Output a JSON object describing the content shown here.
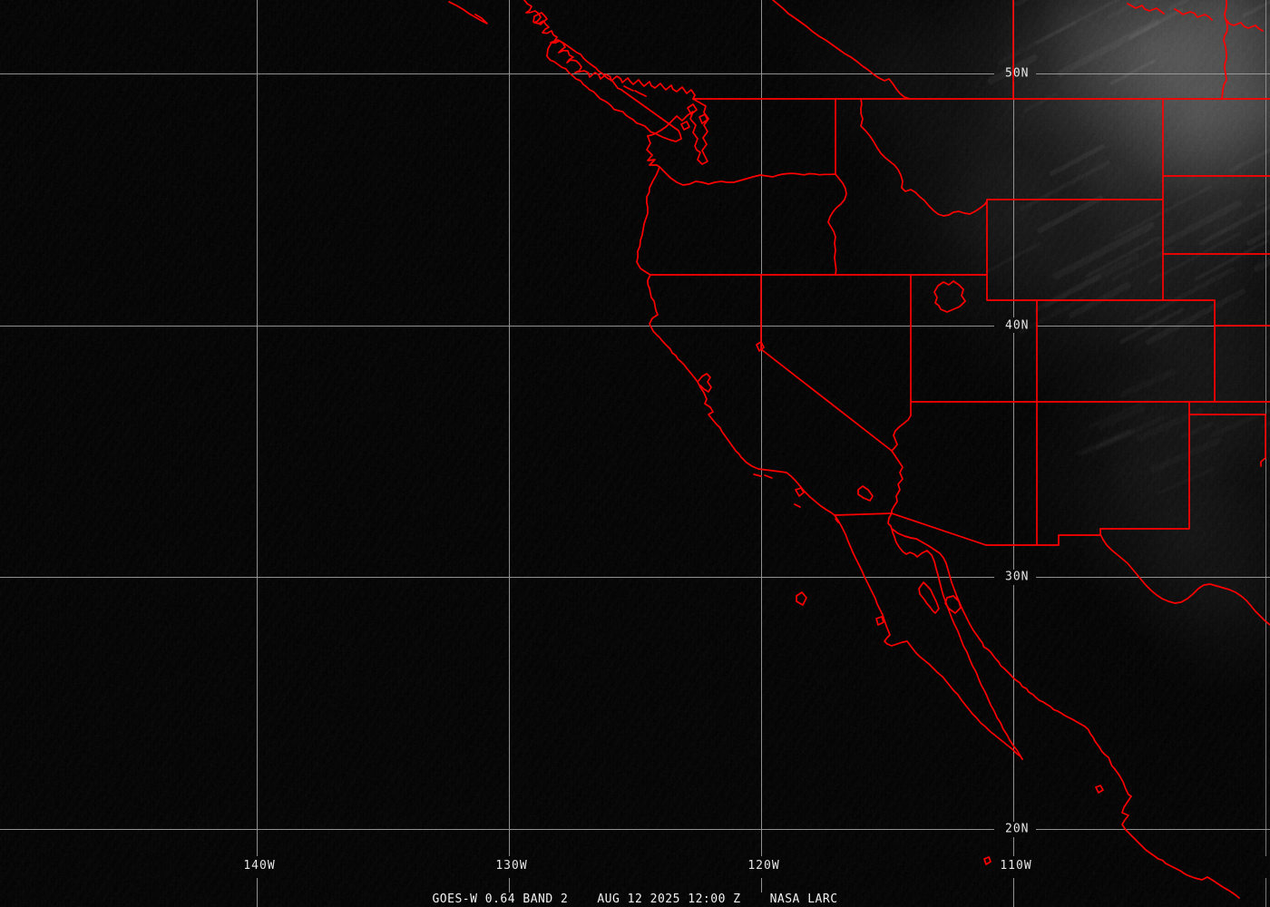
{
  "product": {
    "satellite_band_label": "GOES-W 0.64 BAND 2",
    "datetime_label": "AUG 12 2025 12:00 Z",
    "credit_label": "NASA LARC"
  },
  "grid": {
    "latitude_labels": [
      "50N",
      "40N",
      "30N",
      "20N"
    ],
    "longitude_labels": [
      "140W",
      "130W",
      "120W",
      "110W"
    ]
  },
  "colors": {
    "map_outline_red": "#ff0000",
    "graticule_gray": "#a0a0a0",
    "label_white": "#e6e6e6",
    "background_black": "#000000"
  }
}
